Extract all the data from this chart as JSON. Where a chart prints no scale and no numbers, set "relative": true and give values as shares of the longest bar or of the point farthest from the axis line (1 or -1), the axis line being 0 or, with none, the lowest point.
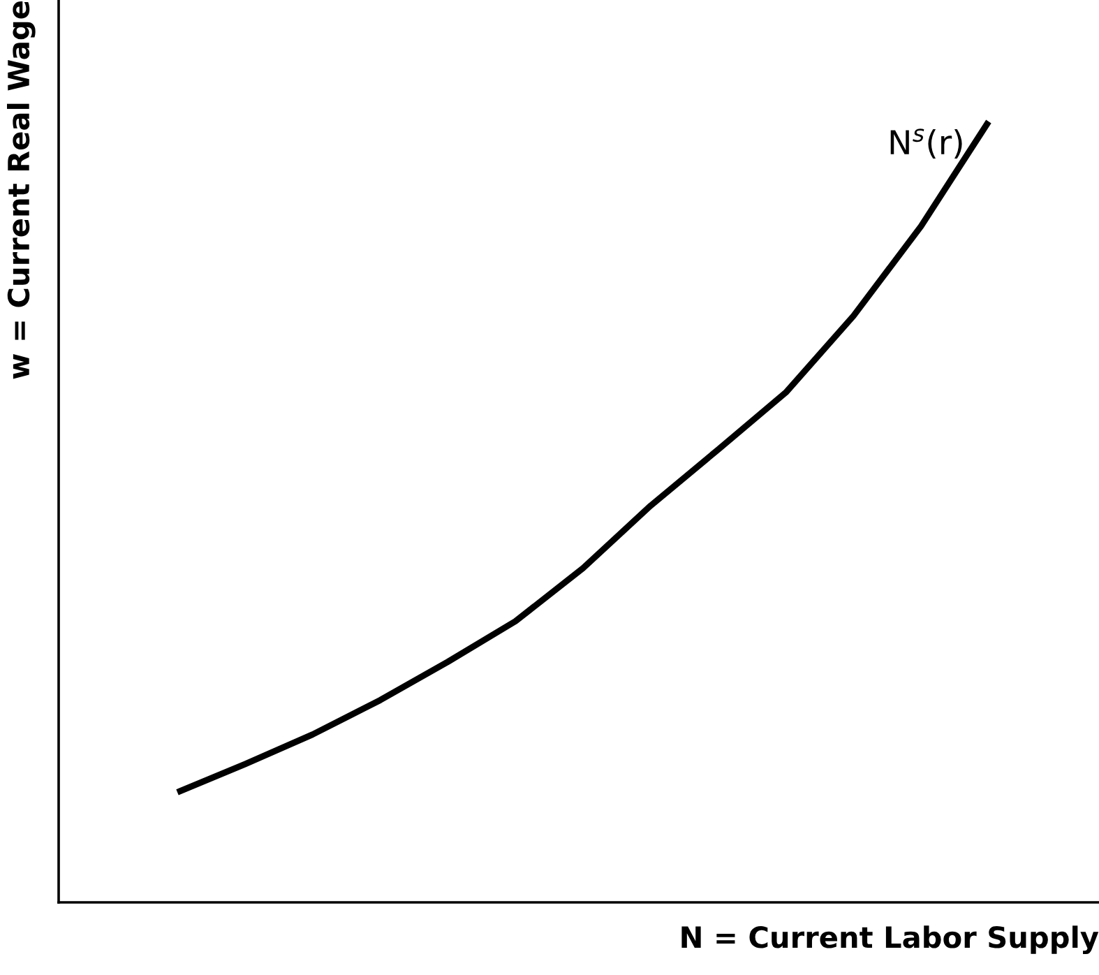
{
  "chart_data": {
    "type": "line",
    "relative": true,
    "xlabel": "N = Current Labor Supply",
    "ylabel": "w = Current Real Wage",
    "categories": [
      null,
      null,
      null,
      null,
      null,
      null,
      null,
      null,
      null,
      null,
      null,
      null,
      null
    ],
    "series": [
      {
        "name": "N$^{s}$(r)",
        "color": "#000000",
        "values": [
          0.141,
          0.177,
          0.215,
          0.259,
          0.308,
          0.36,
          0.428,
          0.508,
          0.58,
          0.653,
          0.751,
          0.866,
          1.0
        ]
      }
    ],
    "grid": false,
    "legend": false,
    "marker": "none",
    "line_style": "solid",
    "tick_labels": false
  }
}
